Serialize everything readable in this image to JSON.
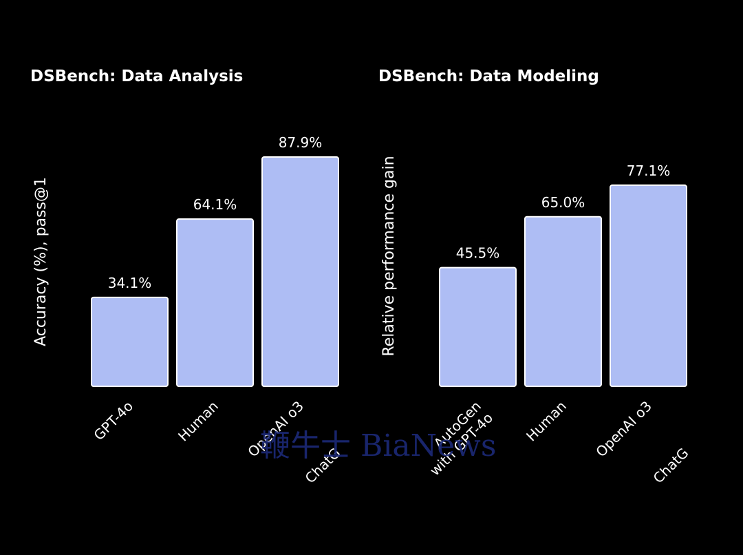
{
  "colors": {
    "background": "#000000",
    "bar_fill": "#aebdf4",
    "bar_stroke": "#ffffff",
    "text": "#ffffff",
    "watermark": "#1c2a78"
  },
  "chart_data": [
    {
      "type": "bar",
      "title": "DSBench: Data Analysis",
      "ylabel": "Accuracy (%), pass@1",
      "xlabel": "",
      "categories": [
        "GPT-4o",
        "Human",
        "OpenAI o3"
      ],
      "values": [
        34.1,
        64.1,
        87.9
      ],
      "value_labels": [
        "34.1%",
        "64.1%",
        "87.9%"
      ],
      "ylim": [
        0,
        100
      ],
      "grid": false,
      "clipped_label": "ChatG"
    },
    {
      "type": "bar",
      "title": "DSBench: Data Modeling",
      "ylabel": "Relative performance gain",
      "xlabel": "",
      "categories": [
        "AutoGen with GPT-4o",
        "Human",
        "OpenAI o3"
      ],
      "values": [
        45.5,
        65.0,
        77.1
      ],
      "value_labels": [
        "45.5%",
        "65.0%",
        "77.1%"
      ],
      "ylim": [
        0,
        100
      ],
      "grid": false,
      "clipped_label": "ChatG"
    }
  ],
  "watermark": {
    "text": "鞭牛士 BiaNews"
  }
}
